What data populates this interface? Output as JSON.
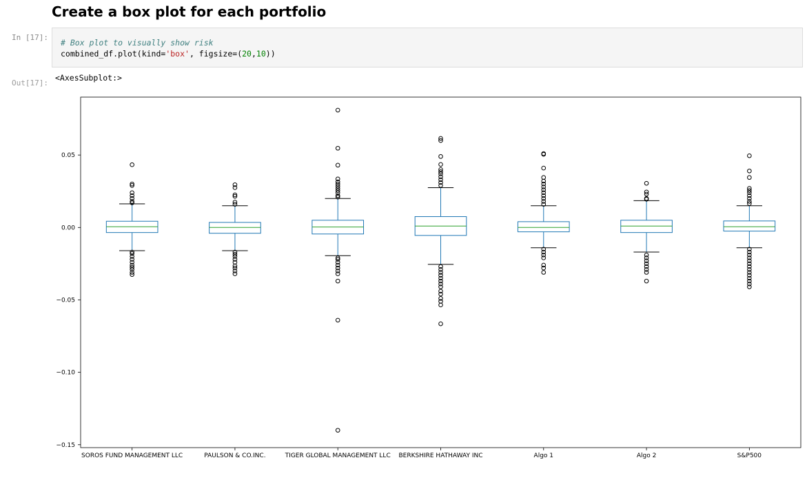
{
  "heading": "Create a box plot for each portfolio",
  "in_prompt": "In [17]:",
  "out_prompt": "Out[17]:",
  "code": {
    "comment": "# Box plot to visually show risk",
    "p1": "combined_df.plot(kind=",
    "p2": "'box'",
    "p3": ", figsize=(",
    "p4": "20",
    "p5": ",",
    "p6": "10",
    "p7": "))"
  },
  "output_text": "<AxesSubplot:>",
  "colors": {
    "box": "#1f77b4",
    "median": "#2ca02c",
    "whisker_cap": "#000000",
    "flier": "#000000"
  },
  "chart_data": {
    "type": "box",
    "ylim": [
      -0.152,
      0.09
    ],
    "yticks": [
      0.05,
      0.0,
      -0.05,
      -0.1,
      -0.15
    ],
    "ytick_labels": [
      "0.05",
      "0.00",
      "−0.05",
      "−0.10",
      "−0.15"
    ],
    "categories": [
      "SOROS FUND MANAGEMENT LLC",
      "PAULSON & CO.INC.",
      "TIGER GLOBAL MANAGEMENT LLC",
      "BERKSHIRE HATHAWAY INC",
      "Algo 1",
      "Algo 2",
      "S&P500"
    ],
    "boxes": [
      {
        "name": "SOROS FUND MANAGEMENT LLC",
        "whislo": -0.016,
        "q1": -0.0035,
        "med": 0.0005,
        "q3": 0.0043,
        "whishi": 0.0163,
        "fliers": [
          0.0433,
          0.03,
          0.029,
          0.024,
          0.022,
          0.02,
          0.018,
          0.017,
          -0.017,
          -0.018,
          -0.02,
          -0.022,
          -0.024,
          -0.026,
          -0.0275,
          -0.029,
          -0.031,
          -0.0325
        ]
      },
      {
        "name": "PAULSON & CO.INC.",
        "whislo": -0.016,
        "q1": -0.004,
        "med": 0.0,
        "q3": 0.0035,
        "whishi": 0.015,
        "fliers": [
          0.0295,
          0.0275,
          0.0225,
          0.0215,
          0.0175,
          0.016,
          -0.017,
          -0.0185,
          -0.02,
          -0.022,
          -0.024,
          -0.0265,
          -0.028,
          -0.03,
          -0.032
        ]
      },
      {
        "name": "TIGER GLOBAL MANAGEMENT LLC",
        "whislo": -0.0195,
        "q1": -0.0045,
        "med": 0.0003,
        "q3": 0.005,
        "whishi": 0.02,
        "fliers": [
          0.081,
          0.0547,
          0.043,
          0.0335,
          0.0315,
          0.03,
          0.0285,
          0.027,
          0.0255,
          0.024,
          0.022,
          0.021,
          -0.021,
          -0.022,
          -0.024,
          -0.026,
          -0.028,
          -0.03,
          -0.032,
          -0.037,
          -0.064,
          -0.14
        ]
      },
      {
        "name": "BERKSHIRE HATHAWAY INC",
        "whislo": -0.0255,
        "q1": -0.0055,
        "med": 0.001,
        "q3": 0.0075,
        "whishi": 0.0275,
        "fliers": [
          0.0615,
          0.06,
          0.049,
          0.0435,
          0.04,
          0.0385,
          0.037,
          0.035,
          0.033,
          0.031,
          0.029,
          -0.027,
          -0.029,
          -0.031,
          -0.033,
          -0.035,
          -0.037,
          -0.039,
          -0.041,
          -0.044,
          -0.046,
          -0.049,
          -0.051,
          -0.0535,
          -0.0665
        ]
      },
      {
        "name": "Algo 1",
        "whislo": -0.014,
        "q1": -0.003,
        "med": 0.0,
        "q3": 0.004,
        "whishi": 0.015,
        "fliers": [
          0.051,
          0.0505,
          0.041,
          0.0345,
          0.032,
          0.03,
          0.028,
          0.026,
          0.024,
          0.022,
          0.02,
          0.018,
          0.016,
          -0.015,
          -0.017,
          -0.019,
          -0.021,
          -0.026,
          -0.028,
          -0.031
        ]
      },
      {
        "name": "Algo 2",
        "whislo": -0.017,
        "q1": -0.0035,
        "med": 0.001,
        "q3": 0.005,
        "whishi": 0.0185,
        "fliers": [
          0.0305,
          0.0245,
          0.023,
          0.02,
          0.0195,
          -0.019,
          -0.021,
          -0.023,
          -0.025,
          -0.027,
          -0.029,
          -0.031,
          -0.037
        ]
      },
      {
        "name": "S&P500",
        "whislo": -0.014,
        "q1": -0.0025,
        "med": 0.0005,
        "q3": 0.0045,
        "whishi": 0.015,
        "fliers": [
          0.0495,
          0.039,
          0.0345,
          0.027,
          0.0255,
          0.024,
          0.022,
          0.02,
          0.018,
          0.0165,
          -0.015,
          -0.017,
          -0.019,
          -0.021,
          -0.023,
          -0.025,
          -0.027,
          -0.029,
          -0.031,
          -0.033,
          -0.035,
          -0.037,
          -0.039,
          -0.041
        ]
      }
    ]
  }
}
